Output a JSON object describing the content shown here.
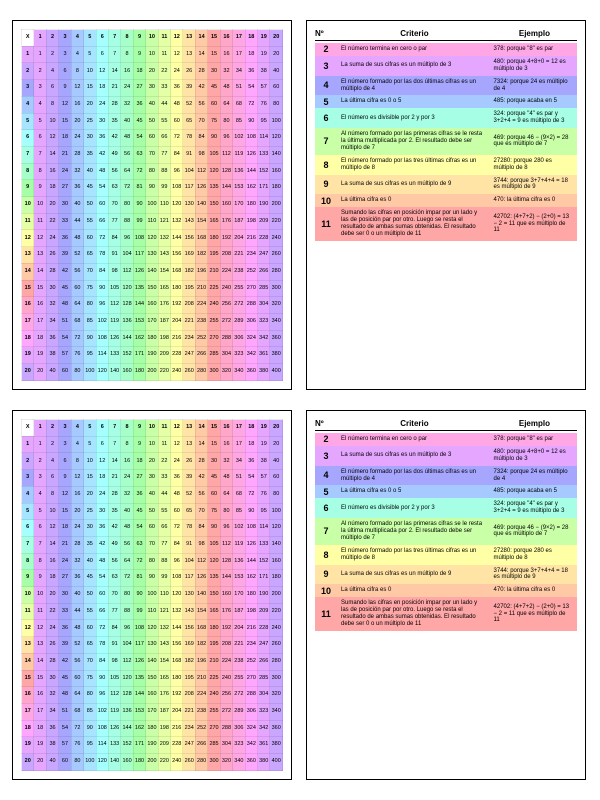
{
  "multHeaderLabel": "X",
  "critHeader": {
    "n": "Nº",
    "c": "Criterio",
    "e": "Ejemplo"
  },
  "colColors": [
    "#e4a6ff",
    "#c9a6ff",
    "#a6a6ff",
    "#a6c9ff",
    "#a6e4ff",
    "#a6ffff",
    "#a6ffe4",
    "#a6ffc9",
    "#a6ffa6",
    "#c9ffa6",
    "#e4ffa6",
    "#ffffa6",
    "#ffe4a6",
    "#ffc9a6",
    "#ffa6a6",
    "#ffa6c9",
    "#ffa6e4",
    "#ffa6ff",
    "#e4a6ff",
    "#c9a6ff"
  ],
  "criteria": [
    {
      "n": "2",
      "c": "El número termina en cero o par",
      "e": "378: porque \"8\" es par",
      "color": "#ffa6e4"
    },
    {
      "n": "3",
      "c": "La suma de sus cifras es un múltiplo de 3",
      "e": "480: porque 4+8+0 = 12 es múltiplo de 3",
      "color": "#e4a6ff"
    },
    {
      "n": "4",
      "c": "El número formado por las dos últimas cifras es un múltiplo de 4",
      "e": "7324: porque 24 es múltiplo de 4",
      "color": "#a6a6ff"
    },
    {
      "n": "5",
      "c": "La última cifra es 0 o 5",
      "e": "485: porque acaba en 5",
      "color": "#a6c9ff"
    },
    {
      "n": "6",
      "c": "El número es divisible por 2 y por 3",
      "e": "324: porque \"4\" es par y 3+2+4 = 9 es múltiplo de 3",
      "color": "#a6ffe4"
    },
    {
      "n": "7",
      "c": "Al número formado por las primeras cifras se le resta la última multiplicada por 2. El resultado debe ser múltiplo de 7",
      "e": "469: porque 46 − (9×2) = 28 que es múltiplo de 7",
      "color": "#c9ffa6"
    },
    {
      "n": "8",
      "c": "El número formado por las tres últimas cifras es un múltiplo de 8",
      "e": "27280: porque 280 es múltiplo de 8",
      "color": "#ffffa6"
    },
    {
      "n": "9",
      "c": "La suma de sus cifras es un múltiplo de 9",
      "e": "3744: porque 3+7+4+4 = 18 es múltiplo de 9",
      "color": "#ffe4a6"
    },
    {
      "n": "10",
      "c": "La última cifra es 0",
      "e": "470: la última cifra es 0",
      "color": "#ffc9a6"
    },
    {
      "n": "11",
      "c": "Sumando las cifras en posición impar por un lado y las de posición par por otro. Luego se resta el resultado de ambas sumas obtenidas. El resultado debe ser 0 o un múltiplo de 11",
      "e": "42702: (4+7+2) − (2+0) = 13 − 2 = 11 que es múltiplo de 11",
      "color": "#ffa6a6"
    }
  ]
}
